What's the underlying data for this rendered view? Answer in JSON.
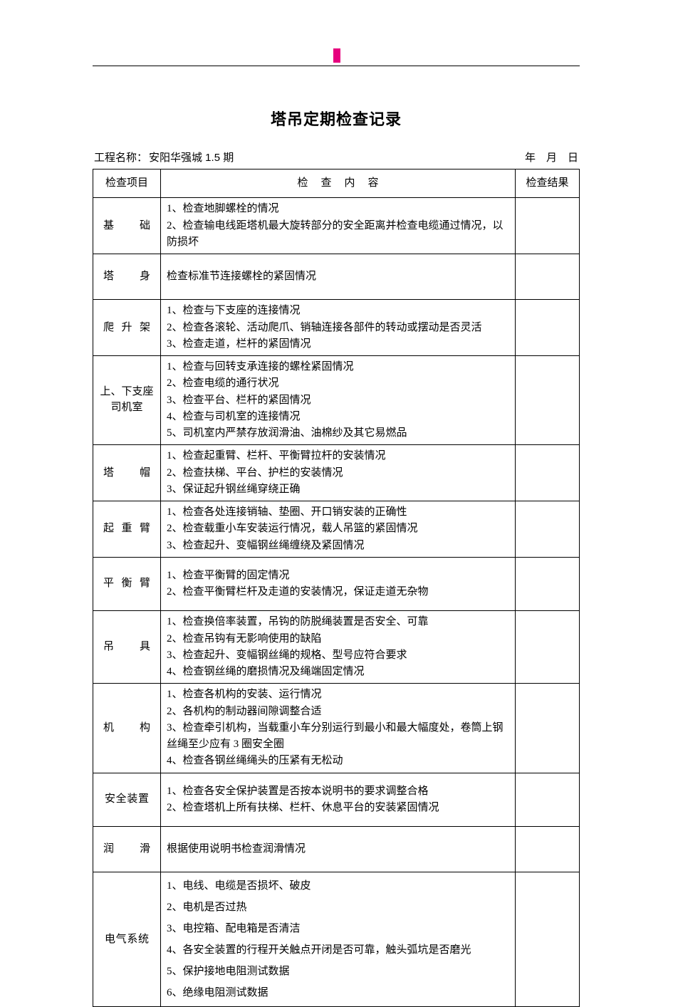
{
  "marker_color": "#e6007e",
  "title": "塔吊定期检查记录",
  "project_label": "工程名称：",
  "project_value": "安阳华强城 1.5 期",
  "date_label": "年　月　日",
  "headers": {
    "col1": "检查项目",
    "col2": "检查内容",
    "col3": "检查结果"
  },
  "rows": [
    {
      "cat": "基础",
      "catStyle": "jy",
      "lines": [
        "1、检查地脚螺栓的情况",
        "2、检查输电线距塔机最大旋转部分的安全距离并检查电缆通过情况，以防损坏"
      ]
    },
    {
      "cat": "塔身",
      "catStyle": "jy",
      "single": true,
      "lines": [
        "检查标准节连接螺栓的紧固情况"
      ]
    },
    {
      "cat": "爬升架",
      "catStyle": "jy",
      "lines": [
        "1、检查与下支座的连接情况",
        "2、检查各滚轮、活动爬爪、销轴连接各部件的转动或摆动是否灵活",
        "3、检查走道，栏杆的紧固情况"
      ]
    },
    {
      "cat": "上、下支座司机室",
      "catStyle": "twoLine",
      "catLine1": "上、下支座",
      "catLine2": "司机室",
      "lines": [
        "1、检查与回转支承连接的螺栓紧固情况",
        "2、检查电缆的通行状况",
        "3、检查平台、栏杆的紧固情况",
        "4、检查与司机室的连接情况",
        "5、司机室内严禁存放润滑油、油棉纱及其它易燃品"
      ]
    },
    {
      "cat": "塔帽",
      "catStyle": "jy",
      "lines": [
        "1、检查起重臂、栏杆、平衡臂拉杆的安装情况",
        "2、检查扶梯、平台、护栏的安装情况",
        "3、保证起升钢丝绳穿绕正确"
      ]
    },
    {
      "cat": "起重臂",
      "catStyle": "jy",
      "lines": [
        "1、检查各处连接销轴、垫圈、开口销安装的正确性",
        "2、检查载重小车安装运行情况，载人吊篮的紧固情况",
        "3、检查起升、变幅钢丝绳缠绕及紧固情况"
      ]
    },
    {
      "cat": "平衡臂",
      "catStyle": "jy",
      "single14": true,
      "lines": [
        "1、检查平衡臂的固定情况",
        "2、检查平衡臂栏杆及走道的安装情况，保证走道无杂物"
      ]
    },
    {
      "cat": "吊具",
      "catStyle": "jy",
      "lines": [
        "1、检查换倍率装置，吊钩的防脱绳装置是否安全、可靠",
        "2、检查吊钩有无影响使用的缺陷",
        "3、检查起升、变幅钢丝绳的规格、型号应符合要求",
        "4、检查钢丝绳的磨损情况及绳端固定情况"
      ]
    },
    {
      "cat": "机构",
      "catStyle": "jy",
      "lines": [
        "1、检查各机构的安装、运行情况",
        "2、各机构的制动器间隙调整合适",
        "3、检查牵引机构，当载重小车分别运行到最小和最大幅度处，卷筒上钢丝绳至少应有 3 圈安全圈",
        "4、检查各钢丝绳绳头的压紧有无松动"
      ]
    },
    {
      "cat": "安全装置",
      "catStyle": "jy4",
      "single14": true,
      "lines": [
        "1、检查各安全保护装置是否按本说明书的要求调整合格",
        "2、检查塔机上所有扶梯、栏杆、休息平台的安装紧固情况"
      ]
    },
    {
      "cat": "润滑",
      "catStyle": "jy",
      "single": true,
      "lines": [
        "根据使用说明书检查润滑情况"
      ]
    },
    {
      "cat": "电气系统",
      "catStyle": "jy4",
      "spaced": true,
      "lines": [
        "1、电线、电缆是否损坏、破皮",
        "2、电机是否过热",
        "3、电控箱、配电箱是否清洁",
        "4、各安全装置的行程开关触点开闭是否可靠，触头弧坑是否磨光",
        "5、保护接地电阻测试数据",
        "6、绝缘电阻测试数据"
      ]
    }
  ]
}
